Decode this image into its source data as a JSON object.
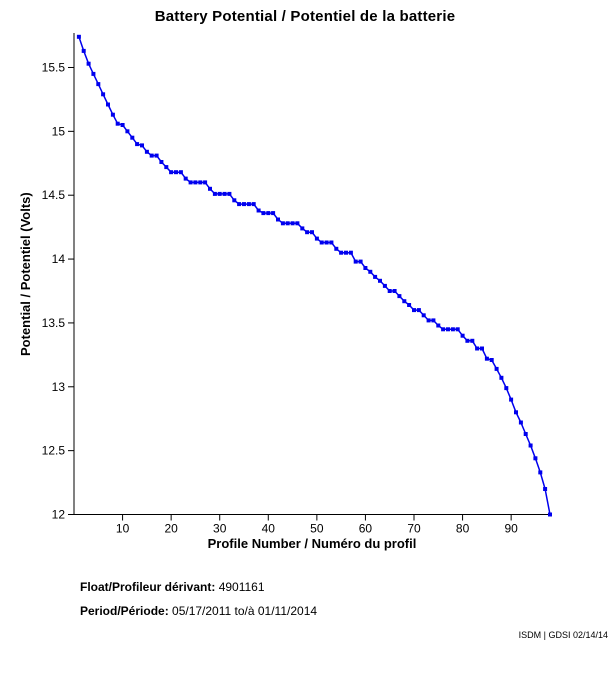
{
  "title": "Battery Potential / Potentiel de la batterie",
  "chart_data": {
    "type": "line",
    "title": "Battery Potential / Potentiel de la batterie",
    "xlabel": "Profile Number / Numéro du profil",
    "ylabel": "Potential / Potentiel (Volts)",
    "xlim": [
      0,
      98
    ],
    "ylim": [
      12,
      15.77
    ],
    "xticks": [
      10,
      20,
      30,
      40,
      50,
      60,
      70,
      80,
      90
    ],
    "yticks": [
      12,
      12.5,
      13,
      13.5,
      14,
      14.5,
      15,
      15.5
    ],
    "grid": false,
    "legend": "none",
    "line_color": "#0000ee",
    "marker": "square",
    "axis_color": "#000000",
    "series": [
      {
        "name": "battery-potential",
        "x_start": 1,
        "x_step": 1,
        "values": [
          15.74,
          15.63,
          15.53,
          15.45,
          15.37,
          15.29,
          15.21,
          15.13,
          15.06,
          15.05,
          15.0,
          14.95,
          14.9,
          14.89,
          14.84,
          14.81,
          14.81,
          14.76,
          14.72,
          14.68,
          14.68,
          14.68,
          14.63,
          14.6,
          14.6,
          14.6,
          14.6,
          14.55,
          14.51,
          14.51,
          14.51,
          14.51,
          14.46,
          14.43,
          14.43,
          14.43,
          14.43,
          14.38,
          14.36,
          14.36,
          14.36,
          14.31,
          14.28,
          14.28,
          14.28,
          14.28,
          14.24,
          14.21,
          14.21,
          14.16,
          14.13,
          14.13,
          14.13,
          14.08,
          14.05,
          14.05,
          14.05,
          13.98,
          13.98,
          13.93,
          13.9,
          13.86,
          13.83,
          13.79,
          13.75,
          13.75,
          13.71,
          13.67,
          13.64,
          13.6,
          13.6,
          13.56,
          13.52,
          13.52,
          13.48,
          13.45,
          13.45,
          13.45,
          13.45,
          13.4,
          13.36,
          13.36,
          13.3,
          13.3,
          13.22,
          13.21,
          13.14,
          13.07,
          12.99,
          12.9,
          12.8,
          12.72,
          12.63,
          12.54,
          12.44,
          12.33,
          12.2,
          12.0
        ]
      }
    ]
  },
  "footer": {
    "float_label": "Float/Profileur dérivant:",
    "float_value": " 4901161",
    "period_label": "Period/Période:",
    "period_value": " 05/17/2011  to/à  01/11/2014",
    "credit": "ISDM | GDSI 02/14/14"
  }
}
